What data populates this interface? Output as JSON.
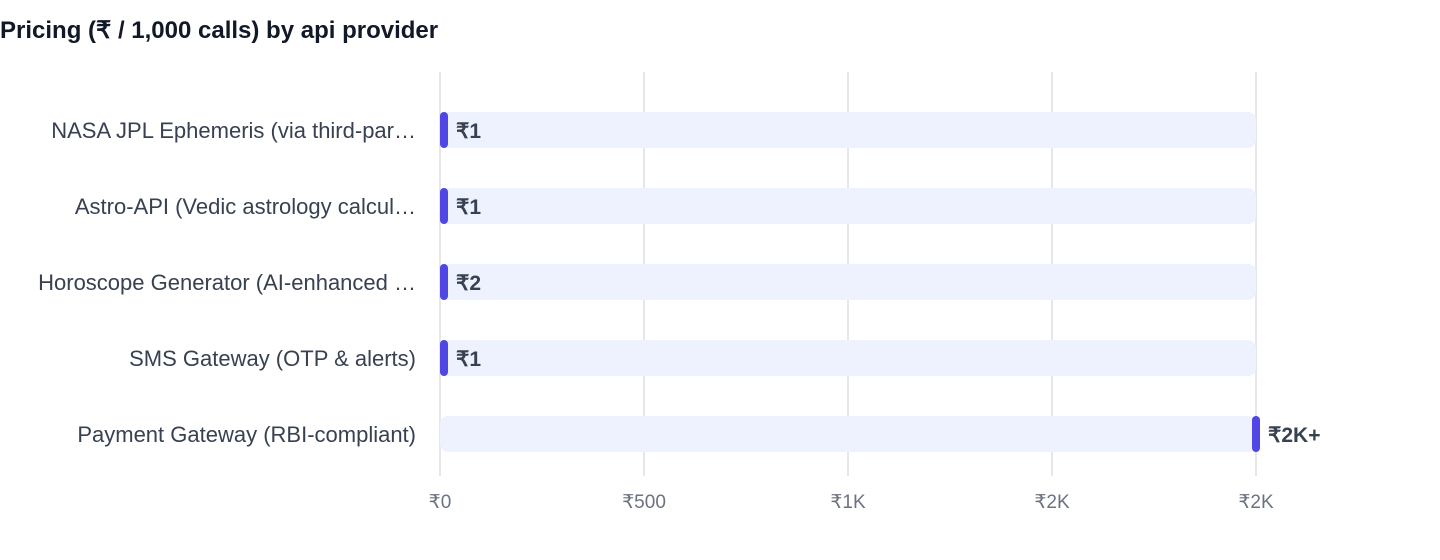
{
  "chart_data": {
    "type": "bar",
    "orientation": "horizontal",
    "title": "Pricing (₹ / 1,000 calls) by api provider",
    "categories": [
      "NASA JPL Ephemeris (via third-par…",
      "Astro-API (Vedic astrology calcul…",
      "Horoscope Generator (AI-enhanced …",
      "SMS Gateway (OTP & alerts)",
      "Payment Gateway (RBI-compliant)"
    ],
    "values": [
      1,
      1,
      2,
      1,
      2000
    ],
    "value_labels": [
      "₹1",
      "₹1",
      "₹2",
      "₹1",
      "₹2K+"
    ],
    "xlim": [
      0,
      2000
    ],
    "x_ticks": [
      0,
      500,
      1000,
      1500,
      2000
    ],
    "x_tick_labels": [
      "₹0",
      "₹500",
      "₹1K",
      "₹2K",
      "₹2K"
    ],
    "grid": true,
    "colors": {
      "bar": "#4f46e5",
      "track": "#eef2ff",
      "grid": "#e5e7eb"
    }
  }
}
